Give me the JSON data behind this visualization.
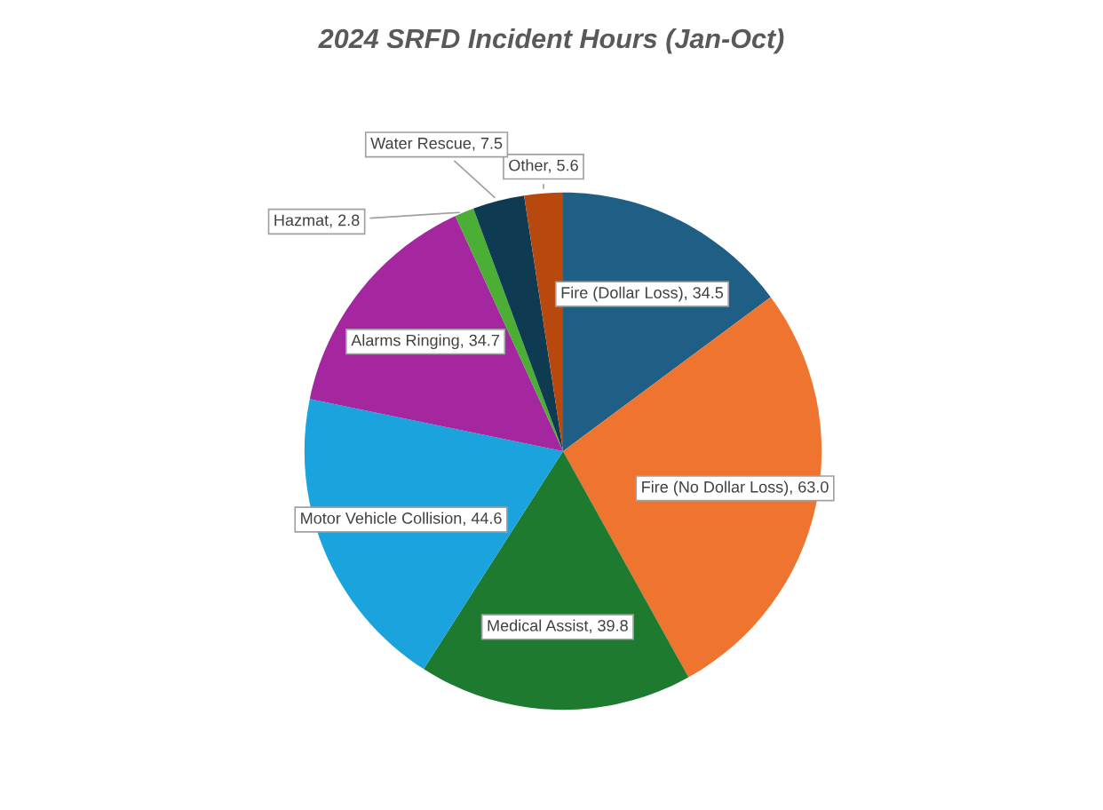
{
  "chart_data": {
    "type": "pie",
    "title": "2024 SRFD Incident Hours (Jan-Oct)",
    "categories": [
      "Fire (Dollar Loss)",
      "Fire (No Dollar Loss)",
      "Medical Assist",
      "Motor Vehicle Collision",
      "Alarms Ringing",
      "Hazmat",
      "Water Rescue",
      "Other"
    ],
    "values": [
      34.5,
      63.0,
      39.8,
      44.6,
      34.7,
      2.8,
      7.5,
      5.6
    ],
    "value_labels": [
      "34.5",
      "63.0",
      "39.8",
      "44.6",
      "34.7",
      "2.8",
      "7.5",
      "5.6"
    ],
    "colors": [
      "#1f5f85",
      "#ee7430",
      "#1e7a2e",
      "#1aa3dc",
      "#a4279f",
      "#4caf35",
      "#0f3b52",
      "#b8490e"
    ]
  }
}
